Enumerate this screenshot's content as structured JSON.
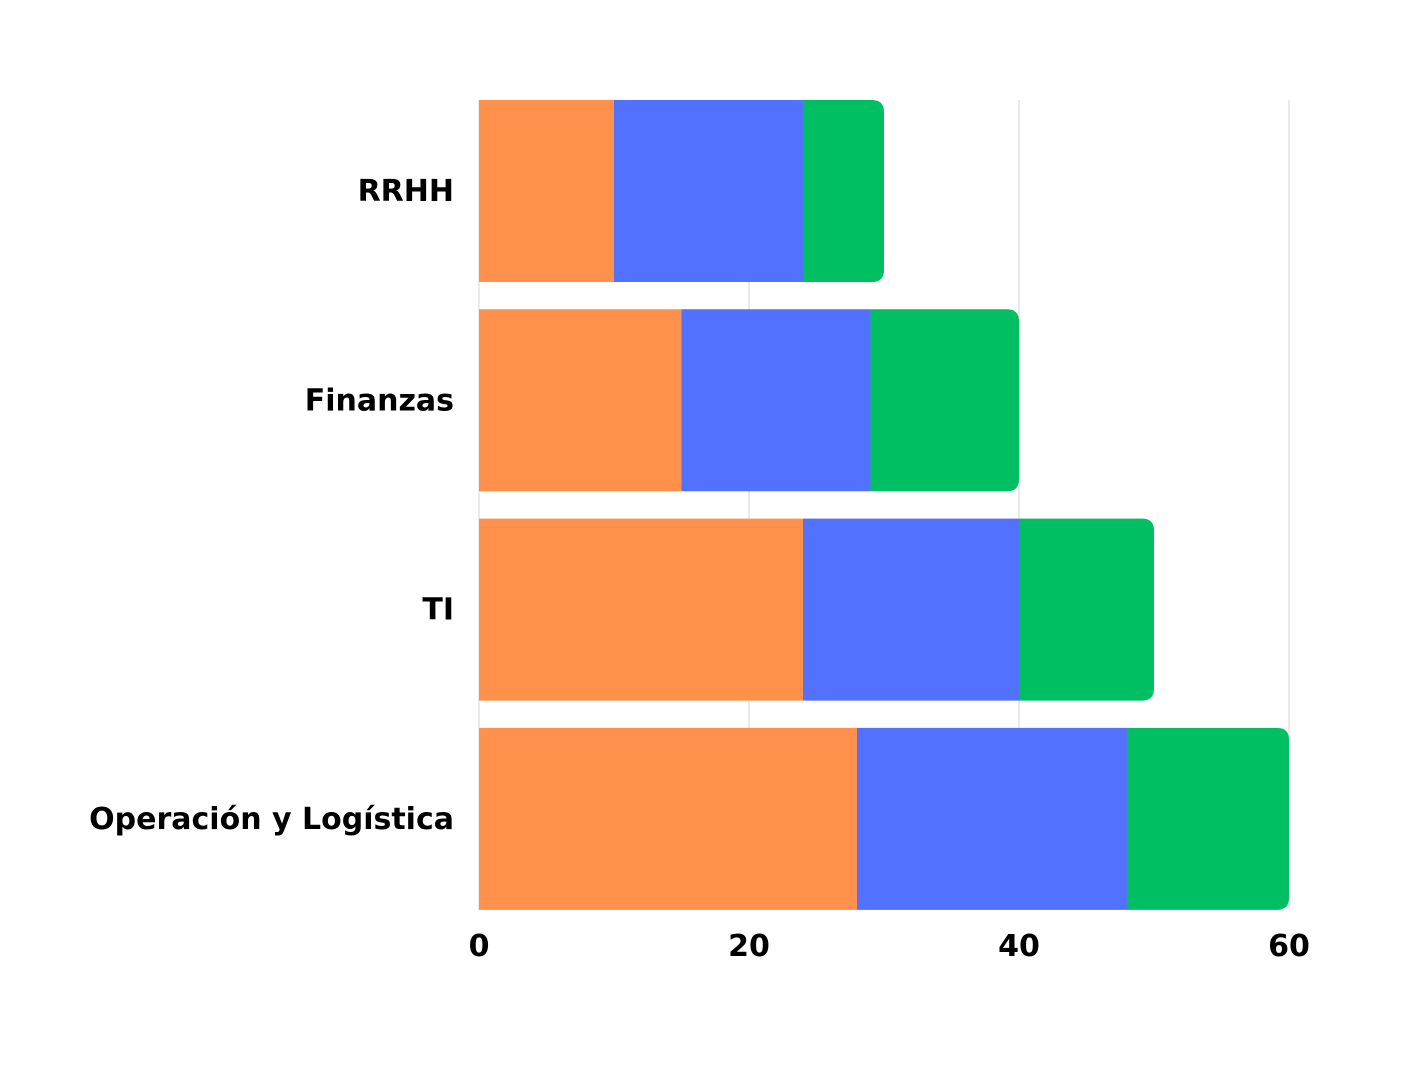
{
  "chart_data": {
    "type": "bar",
    "orientation": "horizontal",
    "stacked": true,
    "categories": [
      "RRHH",
      "Finanzas",
      "TI",
      "Operación y Logística"
    ],
    "series": [
      {
        "color": "#FF914D",
        "values": [
          10,
          15,
          24,
          28
        ]
      },
      {
        "color": "#5271FF",
        "values": [
          14,
          14,
          16,
          20
        ]
      },
      {
        "color": "#00BF63",
        "values": [
          6,
          11,
          10,
          12
        ]
      }
    ],
    "xlim": [
      0,
      60
    ],
    "xticks": [
      0,
      20,
      40,
      60
    ],
    "title": "",
    "xlabel": "",
    "ylabel": "",
    "grid": true,
    "legend": "none"
  }
}
